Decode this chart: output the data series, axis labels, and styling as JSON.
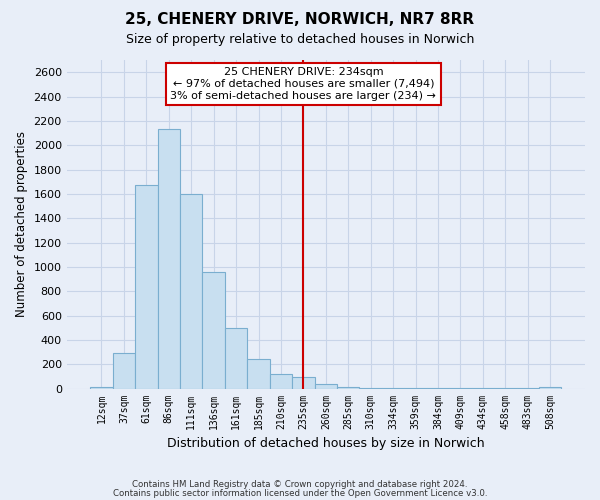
{
  "title": "25, CHENERY DRIVE, NORWICH, NR7 8RR",
  "subtitle": "Size of property relative to detached houses in Norwich",
  "xlabel": "Distribution of detached houses by size in Norwich",
  "ylabel": "Number of detached properties",
  "bin_labels": [
    "12sqm",
    "37sqm",
    "61sqm",
    "86sqm",
    "111sqm",
    "136sqm",
    "161sqm",
    "185sqm",
    "210sqm",
    "235sqm",
    "260sqm",
    "285sqm",
    "310sqm",
    "334sqm",
    "359sqm",
    "384sqm",
    "409sqm",
    "434sqm",
    "458sqm",
    "483sqm",
    "508sqm"
  ],
  "bar_heights": [
    15,
    295,
    1670,
    2130,
    1600,
    960,
    500,
    245,
    120,
    95,
    35,
    10,
    4,
    3,
    2,
    1,
    1,
    1,
    1,
    1,
    15
  ],
  "bar_color": "#c8dff0",
  "bar_edge_color": "#7aaecf",
  "vline_x_index": 9.0,
  "vline_color": "#cc0000",
  "annotation_title": "25 CHENERY DRIVE: 234sqm",
  "annotation_line1": "← 97% of detached houses are smaller (7,494)",
  "annotation_line2": "3% of semi-detached houses are larger (234) →",
  "annotation_box_facecolor": "#ffffff",
  "annotation_box_edgecolor": "#cc0000",
  "ylim": [
    0,
    2700
  ],
  "yticks": [
    0,
    200,
    400,
    600,
    800,
    1000,
    1200,
    1400,
    1600,
    1800,
    2000,
    2200,
    2400,
    2600
  ],
  "grid_color": "#c8d4e8",
  "background_color": "#e8eef8",
  "footnote1": "Contains HM Land Registry data © Crown copyright and database right 2024.",
  "footnote2": "Contains public sector information licensed under the Open Government Licence v3.0."
}
